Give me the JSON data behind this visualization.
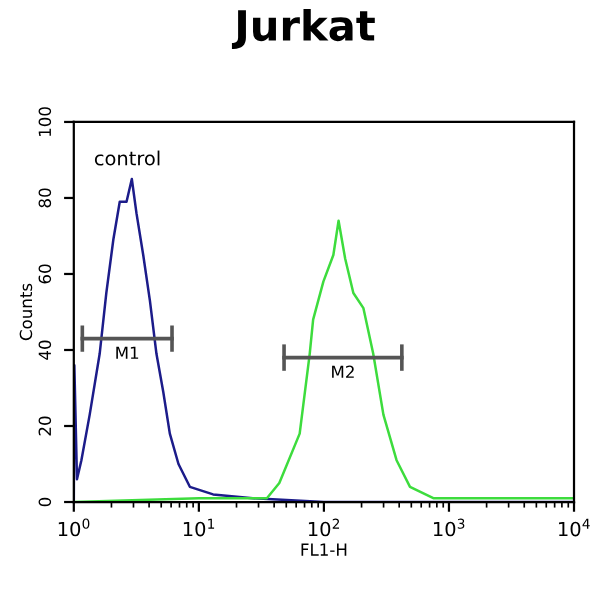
{
  "chart_data": {
    "type": "line",
    "title": "Jurkat",
    "xlabel": "FL1-H",
    "ylabel": "Counts",
    "log": "x",
    "xlim": [
      1,
      10000
    ],
    "ylim": [
      0,
      100
    ],
    "xticks": [
      {
        "value": 1,
        "label": "10$^{0}$"
      },
      {
        "value": 10,
        "label": "10$^{1}$"
      },
      {
        "value": 100,
        "label": "10$^{2}$"
      },
      {
        "value": 1000,
        "label": "10$^{3}$"
      },
      {
        "value": 10000,
        "label": "10$^{4}$"
      }
    ],
    "yticks": [
      0,
      20,
      40,
      60,
      80,
      100
    ],
    "grid": false,
    "legend": false,
    "marker": "none",
    "line_style": "solid",
    "annotations": [
      "control"
    ],
    "series": [
      {
        "color": "#1c1c8a",
        "x": [
          1.0,
          1.01,
          1.06,
          1.15,
          1.34,
          1.61,
          1.82,
          2.07,
          2.33,
          2.64,
          2.91,
          3.17,
          3.59,
          4.06,
          4.58,
          5.19,
          5.86,
          6.87,
          8.47,
          13,
          27,
          100,
          1000,
          10000
        ],
        "values": [
          0,
          36,
          6,
          11,
          23,
          39,
          55,
          69,
          79,
          79,
          85,
          76,
          65,
          53,
          39,
          29,
          18,
          10,
          4,
          2,
          1,
          0,
          0,
          0
        ]
      },
      {
        "color": "#3ddc3d",
        "x": [
          1.0,
          10,
          35,
          44,
          64,
          77,
          82,
          99,
          119,
          131,
          148,
          172,
          207,
          248,
          299,
          381,
          488,
          750,
          1000,
          10000
        ],
        "values": [
          0,
          1,
          1,
          5,
          18,
          39,
          48,
          58,
          65,
          74,
          64,
          55,
          51,
          39,
          23,
          11,
          4,
          1,
          1,
          1
        ]
      },
      {
        "name": "M1",
        "color": "#555555",
        "x": [
          1.17,
          6.1
        ],
        "values": [
          43,
          43
        ]
      },
      {
        "name": "M2",
        "color": "#555555",
        "x": [
          48,
          420
        ],
        "values": [
          38,
          38
        ]
      }
    ]
  }
}
